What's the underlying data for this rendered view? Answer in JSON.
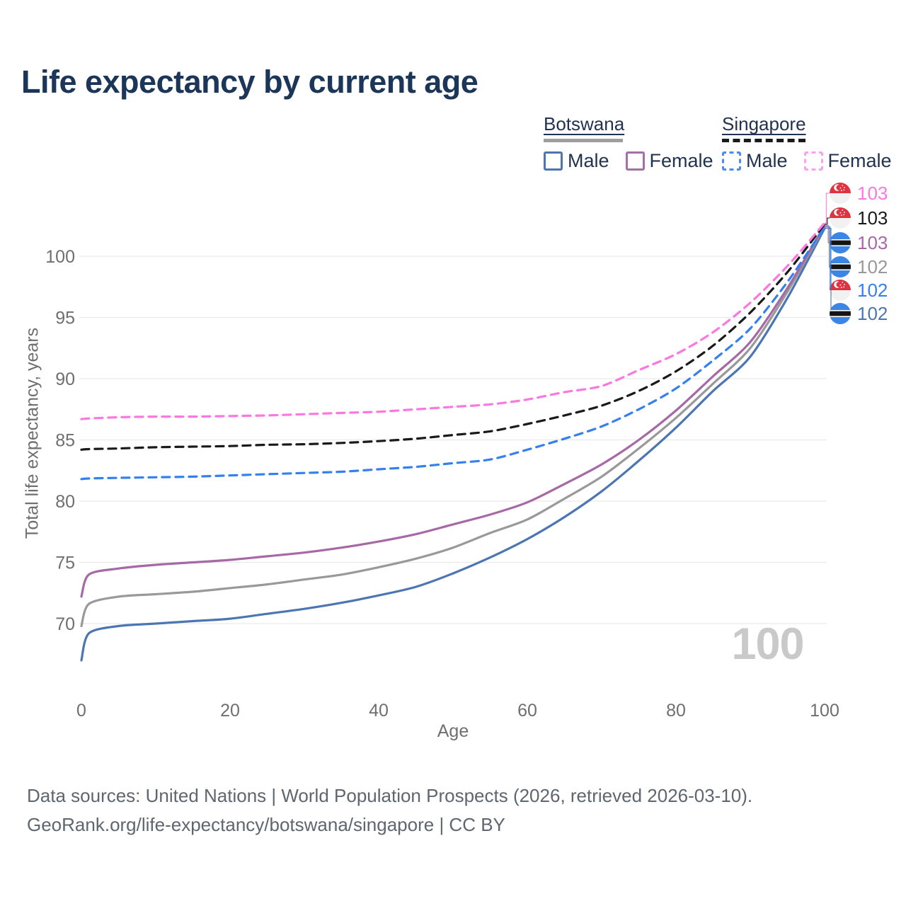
{
  "title": "Life expectancy by current age",
  "legend": {
    "groups": [
      {
        "name": "Botswana",
        "line_style": "solid",
        "bar_color": "#9e9e9e",
        "items": [
          {
            "label": "Male",
            "box_color": "#4c76b2"
          },
          {
            "label": "Female",
            "box_color": "#a66fa8"
          }
        ]
      },
      {
        "name": "Singapore",
        "line_style": "dashed",
        "bar_color": "#1a1a1a",
        "items": [
          {
            "label": "Male",
            "box_color": "#4a8cf7"
          },
          {
            "label": "Female",
            "box_color": "#ffa0ee"
          }
        ]
      }
    ]
  },
  "chart_data": {
    "type": "line",
    "title": "Life expectancy by current age",
    "xlabel": "Age",
    "ylabel": "Total life expectancy, years",
    "xlim": [
      0,
      100
    ],
    "ylim": [
      66,
      103.5
    ],
    "xticks": [
      0,
      20,
      40,
      60,
      80,
      100
    ],
    "yticks": [
      70,
      75,
      80,
      85,
      90,
      95,
      100
    ],
    "grid": "horizontal",
    "legend_position": "top-right",
    "x": [
      0,
      1,
      5,
      10,
      15,
      20,
      25,
      30,
      35,
      40,
      45,
      50,
      55,
      60,
      65,
      70,
      75,
      80,
      85,
      90,
      95,
      100
    ],
    "series": [
      {
        "id": "botswana-male",
        "name": "Botswana Male",
        "country": "Botswana",
        "sex": "Male",
        "line_style": "solid",
        "color": "#4c76b2",
        "values": [
          67.0,
          69.2,
          69.8,
          70.0,
          70.2,
          70.4,
          70.8,
          71.2,
          71.7,
          72.3,
          73.0,
          74.1,
          75.4,
          76.9,
          78.7,
          80.8,
          83.3,
          86.0,
          89.0,
          91.8,
          96.6,
          102.28
        ]
      },
      {
        "id": "botswana-total",
        "name": "Botswana Total",
        "country": "Botswana",
        "sex": "Total",
        "line_style": "solid",
        "color": "#999999",
        "values": [
          69.8,
          71.6,
          72.2,
          72.4,
          72.6,
          72.9,
          73.2,
          73.6,
          74.0,
          74.6,
          75.3,
          76.2,
          77.4,
          78.5,
          80.2,
          82.0,
          84.3,
          86.8,
          89.6,
          92.5,
          97.1,
          102.45
        ]
      },
      {
        "id": "botswana-female",
        "name": "Botswana Female",
        "country": "Botswana",
        "sex": "Female",
        "line_style": "solid",
        "color": "#a669a6",
        "values": [
          72.2,
          74.0,
          74.5,
          74.8,
          75.0,
          75.2,
          75.5,
          75.8,
          76.2,
          76.7,
          77.3,
          78.1,
          78.9,
          79.9,
          81.4,
          83.0,
          85.0,
          87.4,
          90.2,
          93.0,
          97.4,
          102.52
        ]
      },
      {
        "id": "singapore-male",
        "name": "Singapore Male",
        "country": "Singapore",
        "sex": "Male",
        "line_style": "dashed",
        "color": "#3480f0",
        "values": [
          81.8,
          81.85,
          81.9,
          81.95,
          82.0,
          82.1,
          82.2,
          82.3,
          82.4,
          82.6,
          82.8,
          83.1,
          83.4,
          84.2,
          85.1,
          86.1,
          87.5,
          89.2,
          91.5,
          94.1,
          97.9,
          102.38
        ]
      },
      {
        "id": "singapore-total",
        "name": "Singapore Total",
        "country": "Singapore",
        "sex": "Total",
        "line_style": "dashed",
        "color": "#1a1a1a",
        "values": [
          84.2,
          84.25,
          84.3,
          84.4,
          84.45,
          84.5,
          84.6,
          84.65,
          84.75,
          84.9,
          85.1,
          85.4,
          85.7,
          86.3,
          87.0,
          87.8,
          89.0,
          90.6,
          92.7,
          95.4,
          98.7,
          102.62
        ]
      },
      {
        "id": "singapore-female",
        "name": "Singapore Female",
        "country": "Singapore",
        "sex": "Female",
        "line_style": "dashed",
        "color": "#fc77e0",
        "values": [
          86.7,
          86.75,
          86.85,
          86.9,
          86.9,
          86.95,
          87.0,
          87.1,
          87.2,
          87.3,
          87.5,
          87.7,
          87.9,
          88.3,
          88.9,
          89.4,
          90.7,
          92.0,
          93.8,
          96.2,
          99.2,
          102.72
        ]
      }
    ]
  },
  "end_labels": [
    {
      "series": "singapore-female",
      "flag": "singapore",
      "value": "103"
    },
    {
      "series": "singapore-total",
      "flag": "singapore",
      "value": "103"
    },
    {
      "series": "botswana-female",
      "flag": "botswana",
      "value": "103"
    },
    {
      "series": "botswana-total",
      "flag": "botswana",
      "value": "102"
    },
    {
      "series": "singapore-male",
      "flag": "singapore",
      "value": "102"
    },
    {
      "series": "botswana-male",
      "flag": "botswana",
      "value": "102"
    }
  ],
  "watermark": "100",
  "flag_colors": {
    "singapore_red": "#df3341",
    "singapore_white": "#f1f1f1",
    "botswana_blue": "#3b86e4",
    "botswana_black": "#141414",
    "botswana_white": "#ffffff"
  },
  "footer": {
    "line1": "Data sources: United Nations | World Population Prospects (2026, retrieved 2026-03-10).",
    "line2": "GeoRank.org/life-expectancy/botswana/singapore | CC BY"
  }
}
